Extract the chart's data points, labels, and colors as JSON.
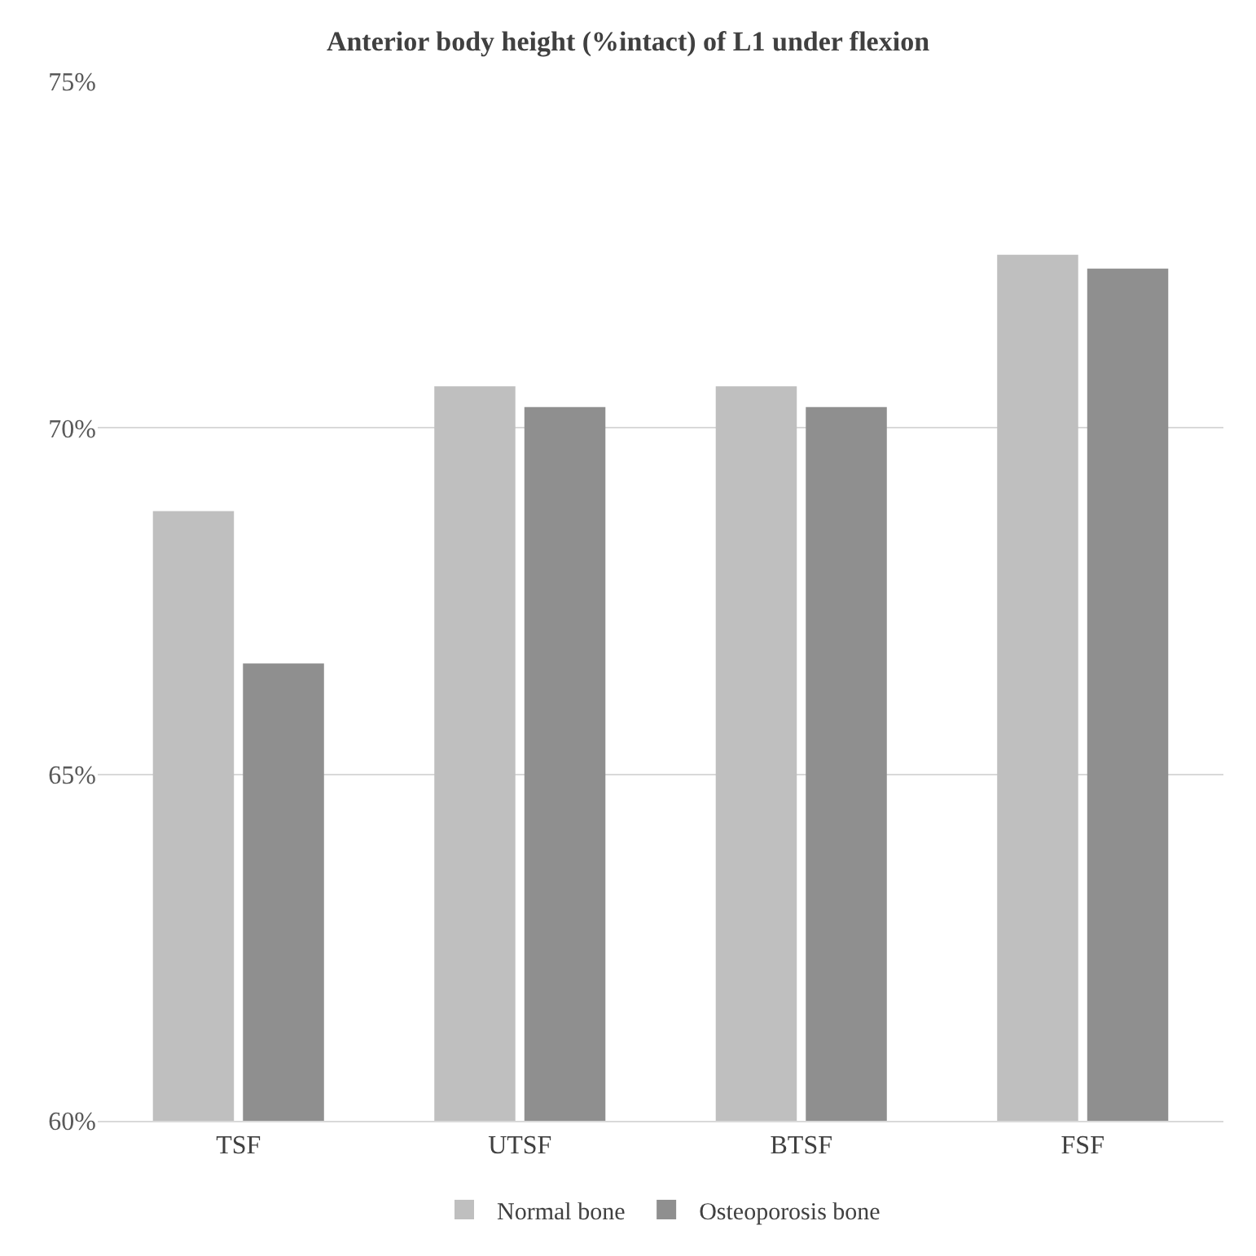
{
  "chart_data": {
    "type": "bar",
    "title": "Anterior body height (%intact) of L1 under flexion",
    "categories": [
      "TSF",
      "UTSF",
      "BTSF",
      "FSF"
    ],
    "series": [
      {
        "name": "Normal bone",
        "color": "#bfbfbf",
        "values": [
          68.8,
          70.6,
          70.6,
          72.5
        ]
      },
      {
        "name": "Osteoporosis bone",
        "color": "#8f8f8f",
        "values": [
          66.6,
          70.3,
          70.3,
          72.3
        ]
      }
    ],
    "ylim": [
      60,
      75
    ],
    "yticks": [
      {
        "value": 60,
        "label": "60%"
      },
      {
        "value": 65,
        "label": "65%"
      },
      {
        "value": 70,
        "label": "70%"
      },
      {
        "value": 75,
        "label": "75%"
      }
    ],
    "grid": "y",
    "legend": "bottom"
  }
}
